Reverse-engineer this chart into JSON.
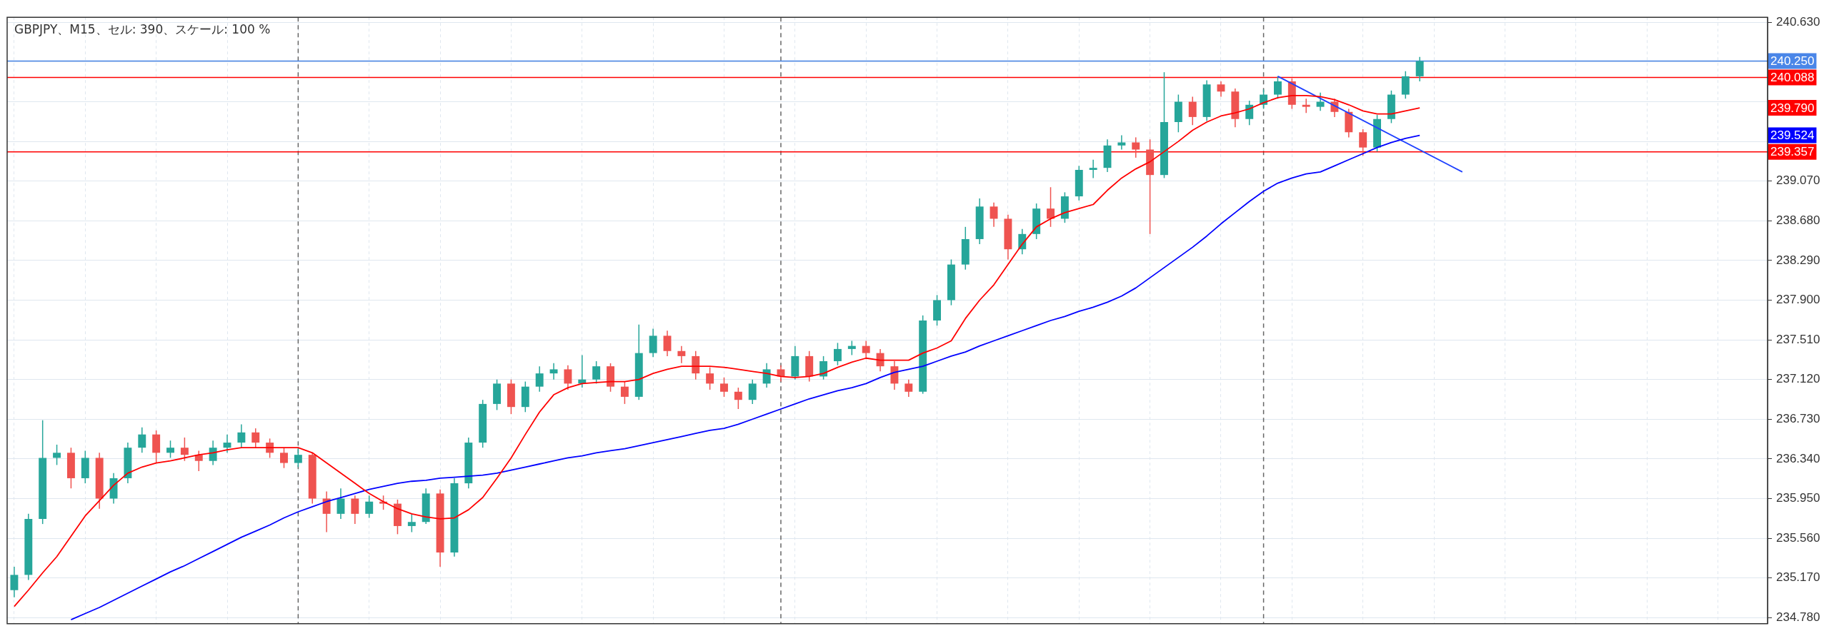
{
  "chart_data": {
    "type": "candlestick",
    "title": "GBPJPY、M15、セル: 390、スケール: 100 %",
    "categories": [
      null,
      null,
      null,
      null,
      null,
      null,
      null,
      null,
      null,
      null,
      null,
      null,
      null,
      null,
      null,
      null,
      null,
      null,
      null,
      null,
      null,
      null,
      null,
      null,
      null,
      null,
      null,
      null,
      null,
      null,
      null,
      null,
      null,
      null,
      null,
      null,
      null,
      null,
      null,
      null,
      null,
      null,
      null,
      null,
      null,
      null,
      null,
      null,
      null,
      null,
      null,
      null,
      null,
      null,
      null,
      null,
      null,
      null,
      null,
      null,
      null,
      null,
      null,
      null,
      null,
      null,
      null,
      null,
      null,
      null,
      null,
      null,
      null,
      null,
      null,
      null,
      null,
      null,
      null,
      null,
      null,
      null,
      null,
      null,
      null,
      null,
      null,
      null,
      null,
      null,
      null,
      null,
      null,
      null,
      null,
      null,
      null,
      null,
      null,
      null,
      null,
      null,
      null,
      null,
      null,
      null,
      null,
      null,
      null,
      null,
      null,
      null,
      null,
      null,
      null,
      null,
      null,
      null,
      null,
      null,
      null,
      null,
      null,
      null
    ],
    "ohlc": [
      [
        235.05,
        235.28,
        234.98,
        235.2
      ],
      [
        235.2,
        235.8,
        235.15,
        235.75
      ],
      [
        235.75,
        236.72,
        235.7,
        236.35
      ],
      [
        236.35,
        236.48,
        236.28,
        236.4
      ],
      [
        236.4,
        236.45,
        236.05,
        236.15
      ],
      [
        236.15,
        236.42,
        236.1,
        236.35
      ],
      [
        236.35,
        236.4,
        235.85,
        235.95
      ],
      [
        235.95,
        236.2,
        235.9,
        236.15
      ],
      [
        236.15,
        236.5,
        236.1,
        236.45
      ],
      [
        236.45,
        236.65,
        236.4,
        236.58
      ],
      [
        236.58,
        236.62,
        236.3,
        236.4
      ],
      [
        236.4,
        236.52,
        236.35,
        236.45
      ],
      [
        236.45,
        236.55,
        236.32,
        236.38
      ],
      [
        236.38,
        236.42,
        236.22,
        236.32
      ],
      [
        236.32,
        236.52,
        236.28,
        236.45
      ],
      [
        236.45,
        236.58,
        236.4,
        236.5
      ],
      [
        236.5,
        236.68,
        236.45,
        236.6
      ],
      [
        236.6,
        236.64,
        236.45,
        236.5
      ],
      [
        236.5,
        236.54,
        236.35,
        236.4
      ],
      [
        236.4,
        236.45,
        236.25,
        236.3
      ],
      [
        236.3,
        236.45,
        236.26,
        236.38
      ],
      [
        236.38,
        236.4,
        235.9,
        235.95
      ],
      [
        235.95,
        236.02,
        235.62,
        235.8
      ],
      [
        235.8,
        236.05,
        235.75,
        235.95
      ],
      [
        235.95,
        235.98,
        235.7,
        235.8
      ],
      [
        235.8,
        235.98,
        235.76,
        235.92
      ],
      [
        235.92,
        235.98,
        235.84,
        235.9
      ],
      [
        235.9,
        235.94,
        235.6,
        235.68
      ],
      [
        235.68,
        235.8,
        235.62,
        235.72
      ],
      [
        235.72,
        236.05,
        235.7,
        236.0
      ],
      [
        236.0,
        236.04,
        235.28,
        235.42
      ],
      [
        235.42,
        236.15,
        235.38,
        236.1
      ],
      [
        236.1,
        236.55,
        236.05,
        236.5
      ],
      [
        236.5,
        236.92,
        236.45,
        236.88
      ],
      [
        236.88,
        237.12,
        236.82,
        237.08
      ],
      [
        237.08,
        237.12,
        236.78,
        236.85
      ],
      [
        236.85,
        237.1,
        236.8,
        237.05
      ],
      [
        237.05,
        237.25,
        237.0,
        237.18
      ],
      [
        237.18,
        237.28,
        237.12,
        237.22
      ],
      [
        237.22,
        237.26,
        237.02,
        237.08
      ],
      [
        237.08,
        237.36,
        237.04,
        237.12
      ],
      [
        237.12,
        237.3,
        237.08,
        237.25
      ],
      [
        237.25,
        237.28,
        237.0,
        237.05
      ],
      [
        237.05,
        237.1,
        236.88,
        236.95
      ],
      [
        236.95,
        237.66,
        236.92,
        237.38
      ],
      [
        237.38,
        237.62,
        237.34,
        237.55
      ],
      [
        237.55,
        237.6,
        237.35,
        237.4
      ],
      [
        237.4,
        237.45,
        237.28,
        237.35
      ],
      [
        237.35,
        237.4,
        237.12,
        237.18
      ],
      [
        237.18,
        237.24,
        237.02,
        237.08
      ],
      [
        237.08,
        237.14,
        236.95,
        237.0
      ],
      [
        237.0,
        237.04,
        236.83,
        236.92
      ],
      [
        236.92,
        237.12,
        236.88,
        237.08
      ],
      [
        237.08,
        237.28,
        237.04,
        237.22
      ],
      [
        237.22,
        237.26,
        237.1,
        237.15
      ],
      [
        237.15,
        237.45,
        237.12,
        237.35
      ],
      [
        237.35,
        237.4,
        237.1,
        237.15
      ],
      [
        237.15,
        237.35,
        237.12,
        237.3
      ],
      [
        237.3,
        237.48,
        237.26,
        237.42
      ],
      [
        237.42,
        237.5,
        237.36,
        237.45
      ],
      [
        237.45,
        237.5,
        237.32,
        237.38
      ],
      [
        237.38,
        237.42,
        237.2,
        237.25
      ],
      [
        237.25,
        237.3,
        237.02,
        237.08
      ],
      [
        237.08,
        237.12,
        236.95,
        237.0
      ],
      [
        237.0,
        237.75,
        236.98,
        237.7
      ],
      [
        237.7,
        237.95,
        237.65,
        237.9
      ],
      [
        237.9,
        238.3,
        237.85,
        238.25
      ],
      [
        238.25,
        238.62,
        238.2,
        238.5
      ],
      [
        238.5,
        238.9,
        238.45,
        238.82
      ],
      [
        238.82,
        238.86,
        238.62,
        238.7
      ],
      [
        238.7,
        238.74,
        238.3,
        238.4
      ],
      [
        238.4,
        238.6,
        238.35,
        238.55
      ],
      [
        238.55,
        238.85,
        238.5,
        238.8
      ],
      [
        238.8,
        239.01,
        238.62,
        238.7
      ],
      [
        238.7,
        238.96,
        238.66,
        238.92
      ],
      [
        238.92,
        239.22,
        238.88,
        239.18
      ],
      [
        239.18,
        239.28,
        239.1,
        239.2
      ],
      [
        239.2,
        239.48,
        239.16,
        239.42
      ],
      [
        239.42,
        239.52,
        239.38,
        239.45
      ],
      [
        239.45,
        239.5,
        239.3,
        239.38
      ],
      [
        239.38,
        239.48,
        238.55,
        239.13
      ],
      [
        239.13,
        240.14,
        239.1,
        239.65
      ],
      [
        239.65,
        239.92,
        239.55,
        239.85
      ],
      [
        239.85,
        239.9,
        239.62,
        239.7
      ],
      [
        239.7,
        240.06,
        239.66,
        240.02
      ],
      [
        240.02,
        240.05,
        239.9,
        239.95
      ],
      [
        239.95,
        239.98,
        239.6,
        239.68
      ],
      [
        239.68,
        239.86,
        239.62,
        239.82
      ],
      [
        239.82,
        239.97,
        239.78,
        239.92
      ],
      [
        239.92,
        240.1,
        239.88,
        240.05
      ],
      [
        240.05,
        240.08,
        239.78,
        239.82
      ],
      [
        239.82,
        239.88,
        239.74,
        239.8
      ],
      [
        239.8,
        239.94,
        239.76,
        239.85
      ],
      [
        239.85,
        239.88,
        239.7,
        239.75
      ],
      [
        239.75,
        239.78,
        239.5,
        239.55
      ],
      [
        239.55,
        239.58,
        239.32,
        239.4
      ],
      [
        239.4,
        239.72,
        239.36,
        239.68
      ],
      [
        239.68,
        239.96,
        239.64,
        239.92
      ],
      [
        239.92,
        240.15,
        239.88,
        240.1
      ],
      [
        240.1,
        240.29,
        240.05,
        240.25
      ],
      null,
      null,
      null,
      null,
      null,
      null,
      null,
      null,
      null,
      null,
      null,
      null,
      null,
      null,
      null,
      null,
      null,
      null,
      null,
      null,
      null,
      null,
      null,
      null
    ],
    "series": [
      {
        "type": "line",
        "color": "#ff0000",
        "values": [
          234.89,
          235.05,
          235.22,
          235.38,
          235.58,
          235.78,
          235.93,
          236.08,
          236.2,
          236.26,
          236.3,
          236.32,
          236.35,
          236.38,
          236.4,
          236.43,
          236.45,
          236.45,
          236.45,
          236.45,
          236.45,
          236.4,
          236.3,
          236.2,
          236.1,
          236.0,
          235.92,
          235.85,
          235.8,
          235.77,
          235.75,
          235.76,
          235.84,
          235.96,
          236.15,
          236.35,
          236.58,
          236.8,
          236.97,
          237.04,
          237.08,
          237.09,
          237.1,
          237.1,
          237.12,
          237.18,
          237.22,
          237.25,
          237.25,
          237.25,
          237.24,
          237.22,
          237.2,
          237.18,
          237.15,
          237.14,
          237.15,
          237.18,
          237.24,
          237.29,
          237.33,
          237.31,
          237.31,
          237.31,
          237.38,
          237.43,
          237.5,
          237.72,
          237.9,
          238.05,
          238.25,
          238.45,
          238.62,
          238.7,
          238.76,
          238.8,
          238.84,
          238.98,
          239.1,
          239.19,
          239.26,
          239.36,
          239.46,
          239.57,
          239.65,
          239.71,
          239.74,
          239.78,
          239.84,
          239.89,
          239.91,
          239.91,
          239.9,
          239.87,
          239.82,
          239.76,
          239.73,
          239.73,
          239.76,
          239.79,
          null,
          null,
          null,
          null,
          null,
          null,
          null,
          null,
          null,
          null,
          null,
          null,
          null,
          null,
          null,
          null,
          null,
          null,
          null,
          null,
          null,
          null,
          null,
          null
        ]
      },
      {
        "type": "line",
        "color": "#0000ff",
        "values": [
          null,
          null,
          null,
          null,
          234.76,
          234.82,
          234.88,
          234.95,
          235.02,
          235.09,
          235.16,
          235.23,
          235.29,
          235.36,
          235.43,
          235.5,
          235.57,
          235.63,
          235.69,
          235.76,
          235.82,
          235.87,
          235.92,
          235.96,
          236.0,
          236.04,
          236.07,
          236.1,
          236.12,
          236.13,
          236.15,
          236.16,
          236.17,
          236.18,
          236.2,
          236.23,
          236.26,
          236.29,
          236.32,
          236.35,
          236.37,
          236.4,
          236.42,
          236.44,
          236.47,
          236.5,
          236.53,
          236.56,
          236.59,
          236.62,
          236.64,
          236.68,
          236.73,
          236.78,
          236.83,
          236.88,
          236.93,
          236.97,
          237.01,
          237.04,
          237.08,
          237.14,
          237.19,
          237.22,
          237.25,
          237.3,
          237.35,
          237.39,
          237.45,
          237.5,
          237.55,
          237.6,
          237.65,
          237.7,
          237.74,
          237.79,
          237.83,
          237.88,
          237.94,
          238.02,
          238.12,
          238.22,
          238.32,
          238.42,
          238.53,
          238.65,
          238.76,
          238.87,
          238.97,
          239.05,
          239.1,
          239.14,
          239.16,
          239.22,
          239.28,
          239.34,
          239.4,
          239.45,
          239.49,
          239.52,
          null,
          null,
          null,
          null,
          null,
          null,
          null,
          null,
          null,
          null,
          null,
          null,
          null,
          null,
          null,
          null,
          null,
          null,
          null,
          null,
          null,
          null,
          null,
          null
        ]
      },
      {
        "type": "line",
        "color": "#1e40ff",
        "values": [
          null,
          null,
          null,
          null,
          null,
          null,
          null,
          null,
          null,
          null,
          null,
          null,
          null,
          null,
          null,
          null,
          null,
          null,
          null,
          null,
          null,
          null,
          null,
          null,
          null,
          null,
          null,
          null,
          null,
          null,
          null,
          null,
          null,
          null,
          null,
          null,
          null,
          null,
          null,
          null,
          null,
          null,
          null,
          null,
          null,
          null,
          null,
          null,
          null,
          null,
          null,
          null,
          null,
          null,
          null,
          null,
          null,
          null,
          null,
          null,
          null,
          null,
          null,
          null,
          null,
          null,
          null,
          null,
          null,
          null,
          null,
          null,
          null,
          null,
          null,
          null,
          null,
          null,
          null,
          null,
          null,
          null,
          null,
          null,
          null,
          null,
          null,
          null,
          null,
          240.1,
          null,
          null,
          null,
          null,
          null,
          null,
          null,
          null,
          null,
          null,
          null,
          null,
          239.16,
          null,
          null,
          null,
          null,
          null,
          null,
          null,
          null,
          null,
          null,
          null,
          null,
          null,
          null,
          null,
          null,
          null,
          null,
          null,
          null,
          null
        ]
      }
    ],
    "ylim": [
      234.72,
      240.68
    ],
    "yticks": [
      {
        "value": 234.78,
        "label": "234.780"
      },
      {
        "value": 235.17,
        "label": "235.170"
      },
      {
        "value": 235.56,
        "label": "235.560"
      },
      {
        "value": 235.95,
        "label": "235.950"
      },
      {
        "value": 236.34,
        "label": "236.340"
      },
      {
        "value": 236.73,
        "label": "236.730"
      },
      {
        "value": 237.12,
        "label": "237.120"
      },
      {
        "value": 237.51,
        "label": "237.510"
      },
      {
        "value": 237.9,
        "label": "237.900"
      },
      {
        "value": 238.29,
        "label": "238.290"
      },
      {
        "value": 238.68,
        "label": "238.680"
      },
      {
        "value": 239.07,
        "label": "239.070"
      },
      {
        "value": 239.46,
        "label": null
      },
      {
        "value": 239.85,
        "label": null
      },
      {
        "value": 240.24,
        "label": null
      },
      {
        "value": 240.63,
        "label": "240.630"
      }
    ],
    "ref_lines": [
      {
        "axis": "y",
        "value": 240.25,
        "label": "240.250",
        "color": "#4a86e8"
      },
      {
        "axis": "y",
        "value": 240.088,
        "label": "240.088",
        "color": "#ff0000"
      },
      {
        "axis": "y",
        "value": 239.357,
        "label": "239.357",
        "color": "#ff0000"
      }
    ],
    "annotations": [
      "239.790",
      "239.524"
    ],
    "grid": true,
    "legend": false
  }
}
